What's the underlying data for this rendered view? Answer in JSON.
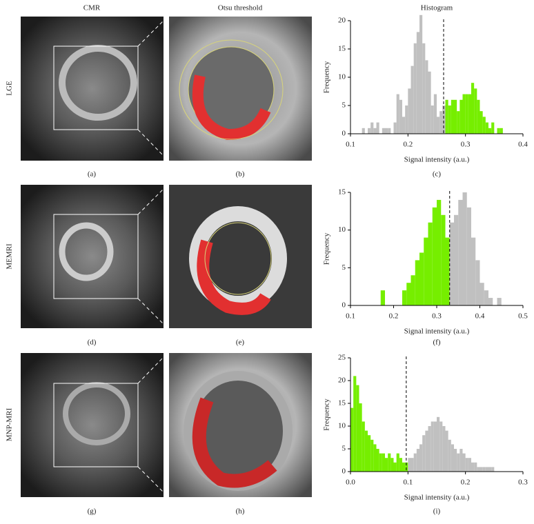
{
  "columns": [
    "CMR",
    "Otsu threshold",
    "Histogram"
  ],
  "rows": [
    "LGE",
    "MEMRI",
    "MNP-MRI"
  ],
  "panels": [
    "(a)",
    "(b)",
    "(c)",
    "(d)",
    "(e)",
    "(f)",
    "(g)",
    "(h)",
    "(i)"
  ],
  "chart_data": [
    {
      "type": "histogram",
      "xlabel": "Signal intensity (a.u.)",
      "ylabel": "Frequency",
      "bins": [
        0.12,
        0.125,
        0.13,
        0.135,
        0.14,
        0.145,
        0.15,
        0.155,
        0.16,
        0.165,
        0.17,
        0.175,
        0.18,
        0.185,
        0.19,
        0.195,
        0.2,
        0.205,
        0.21,
        0.215,
        0.22,
        0.225,
        0.23,
        0.235,
        0.24,
        0.245,
        0.25,
        0.255,
        0.26,
        0.265,
        0.27,
        0.275,
        0.28,
        0.285,
        0.29,
        0.295,
        0.3,
        0.305,
        0.31,
        0.315,
        0.32,
        0.325,
        0.33,
        0.335,
        0.34,
        0.345,
        0.35,
        0.355,
        0.36,
        0.365
      ],
      "counts": [
        1,
        0,
        1,
        2,
        1,
        2,
        0,
        1,
        1,
        1,
        0,
        2,
        7,
        6,
        3,
        5,
        8,
        12,
        16,
        18,
        21,
        16,
        13,
        11,
        5,
        7,
        3,
        4,
        5,
        6,
        5,
        6,
        6,
        4,
        6,
        7,
        7,
        7,
        9,
        8,
        6,
        4,
        3,
        2,
        1,
        2,
        0,
        1,
        1
      ],
      "threshold": 0.262,
      "color_below": "#c0c0c0",
      "color_above": "#76ee00",
      "xlim": [
        0.1,
        0.4
      ],
      "xticks": [
        0.1,
        0.2,
        0.3,
        0.4
      ],
      "ylim": [
        0,
        20
      ],
      "yticks": [
        0,
        5,
        10,
        15,
        20
      ]
    },
    {
      "type": "histogram",
      "xlabel": "Signal intensity (a.u.)",
      "ylabel": "Frequency",
      "bins": [
        0.17,
        0.18,
        0.19,
        0.2,
        0.21,
        0.22,
        0.23,
        0.24,
        0.25,
        0.26,
        0.27,
        0.28,
        0.29,
        0.3,
        0.31,
        0.32,
        0.33,
        0.34,
        0.35,
        0.36,
        0.37,
        0.38,
        0.39,
        0.4,
        0.41,
        0.42,
        0.43,
        0.44,
        0.45
      ],
      "counts": [
        2,
        0,
        0,
        0,
        0,
        2,
        3,
        4,
        6,
        7,
        9,
        11,
        13,
        14,
        12,
        9,
        11,
        12,
        14,
        15,
        13,
        9,
        6,
        3,
        2,
        1,
        0,
        1
      ],
      "threshold": 0.33,
      "color_below": "#76ee00",
      "color_above": "#c0c0c0",
      "xlim": [
        0.1,
        0.5
      ],
      "xticks": [
        0.1,
        0.2,
        0.3,
        0.4,
        0.5
      ],
      "ylim": [
        0,
        15
      ],
      "yticks": [
        0,
        5,
        10,
        15
      ]
    },
    {
      "type": "histogram",
      "xlabel": "Signal intensity (a.u.)",
      "ylabel": "Frequency",
      "bins": [
        0,
        0.005,
        0.01,
        0.015,
        0.02,
        0.025,
        0.03,
        0.035,
        0.04,
        0.045,
        0.05,
        0.055,
        0.06,
        0.065,
        0.07,
        0.075,
        0.08,
        0.085,
        0.09,
        0.095,
        0.1,
        0.105,
        0.11,
        0.115,
        0.12,
        0.125,
        0.13,
        0.135,
        0.14,
        0.145,
        0.15,
        0.155,
        0.16,
        0.165,
        0.17,
        0.175,
        0.18,
        0.185,
        0.19,
        0.195,
        0.2,
        0.205,
        0.21,
        0.215,
        0.22,
        0.225,
        0.23,
        0.235,
        0.24,
        0.245,
        0.25
      ],
      "counts": [
        14,
        21,
        19,
        15,
        11,
        9,
        8,
        7,
        6,
        5,
        4,
        4,
        3,
        4,
        3,
        2,
        4,
        3,
        2,
        2,
        3,
        3,
        4,
        5,
        6,
        8,
        9,
        10,
        11,
        11,
        12,
        11,
        10,
        9,
        7,
        6,
        5,
        4,
        5,
        4,
        3,
        3,
        2,
        2,
        1,
        1,
        1,
        1,
        1,
        1
      ],
      "threshold": 0.097,
      "color_below": "#76ee00",
      "color_above": "#c0c0c0",
      "xlim": [
        0,
        0.3
      ],
      "xticks": [
        {
          "value": 0,
          "label": "0.0"
        },
        0.1,
        0.2,
        0.3
      ],
      "ylim": [
        0,
        25
      ],
      "yticks": [
        0,
        5,
        10,
        15,
        20,
        25
      ]
    }
  ]
}
